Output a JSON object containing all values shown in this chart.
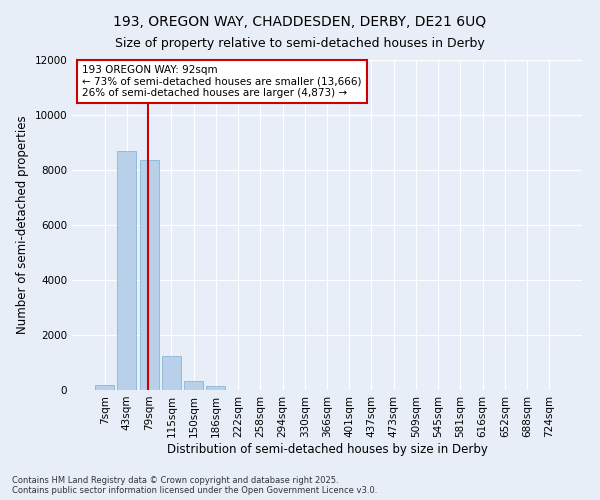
{
  "title_line1": "193, OREGON WAY, CHADDESDEN, DERBY, DE21 6UQ",
  "title_line2": "Size of property relative to semi-detached houses in Derby",
  "xlabel": "Distribution of semi-detached houses by size in Derby",
  "ylabel": "Number of semi-detached properties",
  "categories": [
    "7sqm",
    "43sqm",
    "79sqm",
    "115sqm",
    "150sqm",
    "186sqm",
    "222sqm",
    "258sqm",
    "294sqm",
    "330sqm",
    "366sqm",
    "401sqm",
    "437sqm",
    "473sqm",
    "509sqm",
    "545sqm",
    "581sqm",
    "616sqm",
    "652sqm",
    "688sqm",
    "724sqm"
  ],
  "values": [
    190,
    8680,
    8350,
    1230,
    330,
    140,
    0,
    0,
    0,
    0,
    0,
    0,
    0,
    0,
    0,
    0,
    0,
    0,
    0,
    0,
    0
  ],
  "bar_color": "#b8d0ea",
  "bar_edge_color": "#7aafd4",
  "vline_color": "#cc0000",
  "annotation_text": "193 OREGON WAY: 92sqm\n← 73% of semi-detached houses are smaller (13,666)\n26% of semi-detached houses are larger (4,873) →",
  "annotation_box_color": "#ffffff",
  "annotation_box_edge": "#cc0000",
  "ylim": [
    0,
    12000
  ],
  "yticks": [
    0,
    2000,
    4000,
    6000,
    8000,
    10000,
    12000
  ],
  "footnote": "Contains HM Land Registry data © Crown copyright and database right 2025.\nContains public sector information licensed under the Open Government Licence v3.0.",
  "bg_color": "#e8eef8",
  "grid_color": "#ffffff",
  "title_fontsize": 10,
  "subtitle_fontsize": 9,
  "axis_label_fontsize": 8.5,
  "tick_fontsize": 7.5,
  "annot_fontsize": 7.5
}
